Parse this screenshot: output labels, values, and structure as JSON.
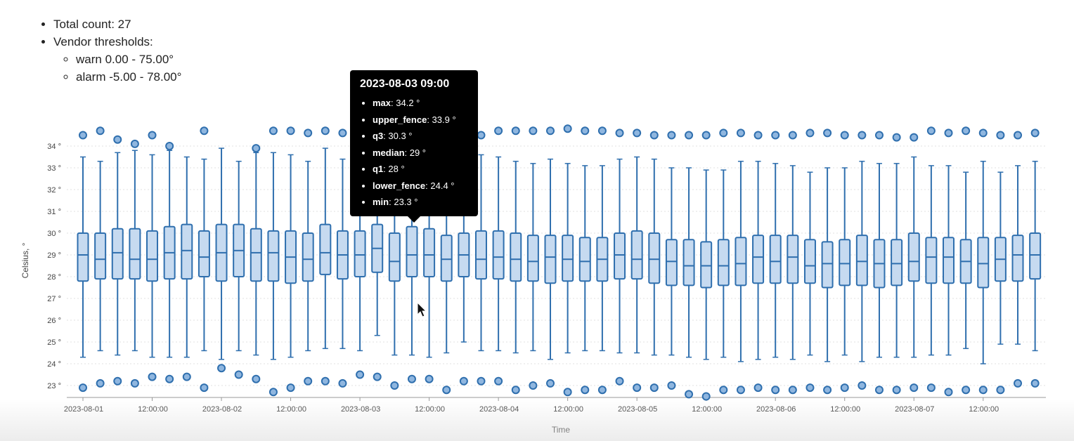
{
  "summary": {
    "total_count": "Total count: 27",
    "thresholds_label": "Vendor thresholds:",
    "warn": "warn 0.00 - 75.00°",
    "alarm": "alarm -5.00 - 78.00°"
  },
  "tooltip": {
    "title": "2023-08-03 09:00",
    "rows": [
      {
        "key": "max",
        "value": ": 34.2 °"
      },
      {
        "key": "upper_fence",
        "value": ": 33.9 °"
      },
      {
        "key": "q3",
        "value": ": 30.3 °"
      },
      {
        "key": "median",
        "value": ": 29 °"
      },
      {
        "key": "q1",
        "value": ": 28 °"
      },
      {
        "key": "lower_fence",
        "value": ": 24.4 °"
      },
      {
        "key": "min",
        "value": ": 23.3 °"
      }
    ]
  },
  "colors": {
    "box_fill": "#c6daf0",
    "box_stroke": "#2f6fae",
    "outlier_fill": "#8fb6df",
    "grid": "#e2e2e2"
  },
  "chart_data": {
    "type": "boxplot",
    "xlabel": "Time",
    "ylabel": "Celsius, °",
    "ylim": [
      22.8,
      34.8
    ],
    "yticks": [
      "23 °",
      "24 °",
      "25 °",
      "26 °",
      "27 °",
      "28 °",
      "29 °",
      "30 °",
      "31 °",
      "32 °",
      "33 °",
      "34 °"
    ],
    "x_range": [
      "2023-08-01 00:00",
      "2023-08-07 21:00"
    ],
    "x_tick_labels": [
      "2023-08-01",
      "12:00:00",
      "2023-08-02",
      "12:00:00",
      "2023-08-03",
      "12:00:00",
      "2023-08-04",
      "12:00:00",
      "2023-08-05",
      "12:00:00",
      "2023-08-06",
      "12:00:00",
      "2023-08-07",
      "12:00:00"
    ],
    "interval_hours": 3,
    "boxes": [
      {
        "t": "2023-08-01 00:00",
        "max": 34.5,
        "upper_fence": 33.5,
        "q3": 30.0,
        "median": 29.0,
        "q1": 27.8,
        "lower_fence": 24.3,
        "min": 22.9
      },
      {
        "t": "2023-08-01 03:00",
        "max": 34.7,
        "upper_fence": 33.3,
        "q3": 30.0,
        "median": 28.8,
        "q1": 27.9,
        "lower_fence": 24.6,
        "min": 23.1
      },
      {
        "t": "2023-08-01 06:00",
        "max": 34.3,
        "upper_fence": 33.7,
        "q3": 30.2,
        "median": 29.1,
        "q1": 27.9,
        "lower_fence": 24.4,
        "min": 23.2
      },
      {
        "t": "2023-08-01 09:00",
        "max": 34.1,
        "upper_fence": 33.8,
        "q3": 30.2,
        "median": 28.8,
        "q1": 27.9,
        "lower_fence": 24.6,
        "min": 23.1
      },
      {
        "t": "2023-08-01 12:00",
        "max": 34.5,
        "upper_fence": 33.6,
        "q3": 30.1,
        "median": 28.8,
        "q1": 27.8,
        "lower_fence": 24.3,
        "min": 23.4
      },
      {
        "t": "2023-08-01 15:00",
        "max": 34.0,
        "upper_fence": 33.8,
        "q3": 30.3,
        "median": 29.1,
        "q1": 27.9,
        "lower_fence": 24.3,
        "min": 23.3
      },
      {
        "t": "2023-08-01 18:00",
        "max": null,
        "upper_fence": 33.5,
        "q3": 30.4,
        "median": 29.2,
        "q1": 27.9,
        "lower_fence": 24.3,
        "min": 23.4
      },
      {
        "t": "2023-08-01 21:00",
        "max": 34.7,
        "upper_fence": 33.4,
        "q3": 30.1,
        "median": 28.9,
        "q1": 28.0,
        "lower_fence": 24.6,
        "min": 22.9
      },
      {
        "t": "2023-08-02 00:00",
        "max": null,
        "upper_fence": 33.9,
        "q3": 30.4,
        "median": 29.1,
        "q1": 27.8,
        "lower_fence": 24.2,
        "min": 23.8
      },
      {
        "t": "2023-08-02 03:00",
        "max": null,
        "upper_fence": 33.3,
        "q3": 30.4,
        "median": 29.2,
        "q1": 28.0,
        "lower_fence": 24.6,
        "min": 23.5
      },
      {
        "t": "2023-08-02 06:00",
        "max": 33.9,
        "upper_fence": 33.7,
        "q3": 30.2,
        "median": 29.1,
        "q1": 27.8,
        "lower_fence": 24.4,
        "min": 23.3
      },
      {
        "t": "2023-08-02 09:00",
        "max": 34.7,
        "upper_fence": 33.7,
        "q3": 30.1,
        "median": 29.1,
        "q1": 27.8,
        "lower_fence": 24.2,
        "min": 22.7
      },
      {
        "t": "2023-08-02 12:00",
        "max": 34.7,
        "upper_fence": 33.6,
        "q3": 30.1,
        "median": 28.9,
        "q1": 27.7,
        "lower_fence": 24.3,
        "min": 22.9
      },
      {
        "t": "2023-08-02 15:00",
        "max": 34.6,
        "upper_fence": 33.3,
        "q3": 30.0,
        "median": 28.8,
        "q1": 27.8,
        "lower_fence": 24.6,
        "min": 23.2
      },
      {
        "t": "2023-08-02 18:00",
        "max": 34.7,
        "upper_fence": 33.9,
        "q3": 30.4,
        "median": 29.1,
        "q1": 28.1,
        "lower_fence": 24.7,
        "min": 23.2
      },
      {
        "t": "2023-08-02 21:00",
        "max": 34.6,
        "upper_fence": 33.4,
        "q3": 30.1,
        "median": 29.0,
        "q1": 27.9,
        "lower_fence": 24.7,
        "min": 23.1
      },
      {
        "t": "2023-08-03 00:00",
        "max": null,
        "upper_fence": 33.6,
        "q3": 30.1,
        "median": 29.0,
        "q1": 28.0,
        "lower_fence": 24.6,
        "min": 23.5
      },
      {
        "t": "2023-08-03 03:00",
        "max": null,
        "upper_fence": 33.7,
        "q3": 30.4,
        "median": 29.3,
        "q1": 28.2,
        "lower_fence": 25.3,
        "min": 23.4
      },
      {
        "t": "2023-08-03 06:00",
        "max": null,
        "upper_fence": 33.7,
        "q3": 30.0,
        "median": 28.7,
        "q1": 27.8,
        "lower_fence": 24.4,
        "min": 23.0
      },
      {
        "t": "2023-08-03 09:00",
        "max": 34.2,
        "upper_fence": 33.9,
        "q3": 30.3,
        "median": 29.0,
        "q1": 28.0,
        "lower_fence": 24.4,
        "min": 23.3
      },
      {
        "t": "2023-08-03 12:00",
        "max": null,
        "upper_fence": 33.4,
        "q3": 30.2,
        "median": 29.0,
        "q1": 28.0,
        "lower_fence": 24.3,
        "min": 23.3
      },
      {
        "t": "2023-08-03 15:00",
        "max": null,
        "upper_fence": 33.6,
        "q3": 29.9,
        "median": 28.8,
        "q1": 27.8,
        "lower_fence": 24.5,
        "min": 22.8
      },
      {
        "t": "2023-08-03 18:00",
        "max": null,
        "upper_fence": 33.4,
        "q3": 30.0,
        "median": 29.0,
        "q1": 28.0,
        "lower_fence": 25.0,
        "min": 23.2
      },
      {
        "t": "2023-08-03 21:00",
        "max": 34.5,
        "upper_fence": 33.6,
        "q3": 30.1,
        "median": 28.8,
        "q1": 27.9,
        "lower_fence": 24.6,
        "min": 23.2
      },
      {
        "t": "2023-08-04 00:00",
        "max": 34.7,
        "upper_fence": 33.5,
        "q3": 30.1,
        "median": 28.9,
        "q1": 27.9,
        "lower_fence": 24.6,
        "min": 23.2
      },
      {
        "t": "2023-08-04 03:00",
        "max": 34.7,
        "upper_fence": 33.3,
        "q3": 30.0,
        "median": 28.8,
        "q1": 27.8,
        "lower_fence": 24.5,
        "min": 22.8
      },
      {
        "t": "2023-08-04 06:00",
        "max": 34.7,
        "upper_fence": 33.2,
        "q3": 29.9,
        "median": 28.7,
        "q1": 27.8,
        "lower_fence": 24.6,
        "min": 23.0
      },
      {
        "t": "2023-08-04 09:00",
        "max": 34.7,
        "upper_fence": 33.4,
        "q3": 29.9,
        "median": 28.9,
        "q1": 27.7,
        "lower_fence": 24.2,
        "min": 23.1
      },
      {
        "t": "2023-08-04 12:00",
        "max": 34.8,
        "upper_fence": 33.2,
        "q3": 29.9,
        "median": 28.8,
        "q1": 27.8,
        "lower_fence": 24.5,
        "min": 22.7
      },
      {
        "t": "2023-08-04 15:00",
        "max": 34.7,
        "upper_fence": 33.1,
        "q3": 29.8,
        "median": 28.7,
        "q1": 27.8,
        "lower_fence": 24.6,
        "min": 22.8
      },
      {
        "t": "2023-08-04 18:00",
        "max": 34.7,
        "upper_fence": 33.1,
        "q3": 29.8,
        "median": 28.8,
        "q1": 27.8,
        "lower_fence": 24.6,
        "min": 22.8
      },
      {
        "t": "2023-08-04 21:00",
        "max": 34.6,
        "upper_fence": 33.4,
        "q3": 30.0,
        "median": 29.0,
        "q1": 27.9,
        "lower_fence": 24.5,
        "min": 23.2
      },
      {
        "t": "2023-08-05 00:00",
        "max": 34.6,
        "upper_fence": 33.5,
        "q3": 30.1,
        "median": 28.8,
        "q1": 27.9,
        "lower_fence": 24.5,
        "min": 22.9
      },
      {
        "t": "2023-08-05 03:00",
        "max": 34.5,
        "upper_fence": 33.4,
        "q3": 30.0,
        "median": 28.8,
        "q1": 27.7,
        "lower_fence": 24.4,
        "min": 22.9
      },
      {
        "t": "2023-08-05 06:00",
        "max": 34.5,
        "upper_fence": 33.0,
        "q3": 29.7,
        "median": 28.7,
        "q1": 27.6,
        "lower_fence": 24.4,
        "min": 23.0
      },
      {
        "t": "2023-08-05 09:00",
        "max": 34.5,
        "upper_fence": 33.0,
        "q3": 29.7,
        "median": 28.5,
        "q1": 27.6,
        "lower_fence": 24.3,
        "min": 22.6
      },
      {
        "t": "2023-08-05 12:00",
        "max": 34.5,
        "upper_fence": 32.9,
        "q3": 29.6,
        "median": 28.5,
        "q1": 27.5,
        "lower_fence": 24.2,
        "min": 22.5
      },
      {
        "t": "2023-08-05 15:00",
        "max": 34.6,
        "upper_fence": 32.9,
        "q3": 29.7,
        "median": 28.5,
        "q1": 27.6,
        "lower_fence": 24.3,
        "min": 22.8
      },
      {
        "t": "2023-08-05 18:00",
        "max": 34.6,
        "upper_fence": 33.3,
        "q3": 29.8,
        "median": 28.6,
        "q1": 27.6,
        "lower_fence": 24.1,
        "min": 22.8
      },
      {
        "t": "2023-08-05 21:00",
        "max": 34.5,
        "upper_fence": 33.3,
        "q3": 29.9,
        "median": 28.9,
        "q1": 27.7,
        "lower_fence": 24.2,
        "min": 22.9
      },
      {
        "t": "2023-08-06 00:00",
        "max": 34.5,
        "upper_fence": 33.2,
        "q3": 29.9,
        "median": 28.7,
        "q1": 27.7,
        "lower_fence": 24.3,
        "min": 22.8
      },
      {
        "t": "2023-08-06 03:00",
        "max": 34.5,
        "upper_fence": 33.1,
        "q3": 29.9,
        "median": 28.9,
        "q1": 27.7,
        "lower_fence": 24.2,
        "min": 22.8
      },
      {
        "t": "2023-08-06 06:00",
        "max": 34.6,
        "upper_fence": 32.8,
        "q3": 29.7,
        "median": 28.5,
        "q1": 27.7,
        "lower_fence": 24.4,
        "min": 22.9
      },
      {
        "t": "2023-08-06 09:00",
        "max": 34.6,
        "upper_fence": 33.0,
        "q3": 29.6,
        "median": 28.6,
        "q1": 27.5,
        "lower_fence": 24.1,
        "min": 22.8
      },
      {
        "t": "2023-08-06 12:00",
        "max": 34.5,
        "upper_fence": 33.0,
        "q3": 29.7,
        "median": 28.6,
        "q1": 27.6,
        "lower_fence": 24.4,
        "min": 22.9
      },
      {
        "t": "2023-08-06 15:00",
        "max": 34.5,
        "upper_fence": 33.3,
        "q3": 29.9,
        "median": 28.7,
        "q1": 27.6,
        "lower_fence": 24.1,
        "min": 23.0
      },
      {
        "t": "2023-08-06 18:00",
        "max": 34.5,
        "upper_fence": 33.2,
        "q3": 29.7,
        "median": 28.6,
        "q1": 27.5,
        "lower_fence": 24.3,
        "min": 22.8
      },
      {
        "t": "2023-08-06 21:00",
        "max": 34.4,
        "upper_fence": 33.2,
        "q3": 29.7,
        "median": 28.6,
        "q1": 27.6,
        "lower_fence": 24.3,
        "min": 22.8
      },
      {
        "t": "2023-08-07 00:00",
        "max": 34.4,
        "upper_fence": 33.5,
        "q3": 30.0,
        "median": 28.7,
        "q1": 27.8,
        "lower_fence": 24.3,
        "min": 22.9
      },
      {
        "t": "2023-08-07 03:00",
        "max": 34.7,
        "upper_fence": 33.1,
        "q3": 29.8,
        "median": 28.9,
        "q1": 27.7,
        "lower_fence": 24.4,
        "min": 22.9
      },
      {
        "t": "2023-08-07 06:00",
        "max": 34.6,
        "upper_fence": 33.1,
        "q3": 29.8,
        "median": 28.9,
        "q1": 27.7,
        "lower_fence": 24.4,
        "min": 22.7
      },
      {
        "t": "2023-08-07 09:00",
        "max": 34.7,
        "upper_fence": 32.8,
        "q3": 29.7,
        "median": 28.7,
        "q1": 27.7,
        "lower_fence": 24.7,
        "min": 22.8
      },
      {
        "t": "2023-08-07 12:00",
        "max": 34.6,
        "upper_fence": 33.3,
        "q3": 29.8,
        "median": 28.6,
        "q1": 27.5,
        "lower_fence": 24.0,
        "min": 22.8
      },
      {
        "t": "2023-08-07 15:00",
        "max": 34.5,
        "upper_fence": 32.8,
        "q3": 29.8,
        "median": 28.8,
        "q1": 27.8,
        "lower_fence": 24.9,
        "min": 22.8
      },
      {
        "t": "2023-08-07 18:00",
        "max": 34.5,
        "upper_fence": 33.1,
        "q3": 29.9,
        "median": 29.0,
        "q1": 27.8,
        "lower_fence": 24.9,
        "min": 23.1
      },
      {
        "t": "2023-08-07 21:00",
        "max": 34.6,
        "upper_fence": 33.3,
        "q3": 30.0,
        "median": 29.0,
        "q1": 27.9,
        "lower_fence": 24.6,
        "min": 23.1
      }
    ]
  }
}
